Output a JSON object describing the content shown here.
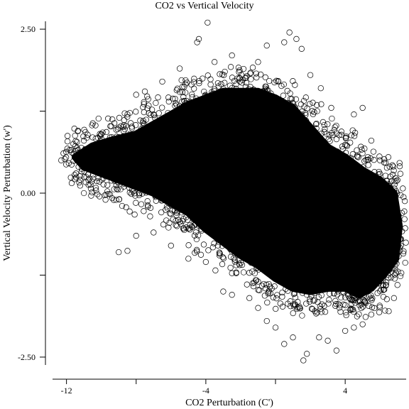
{
  "chart_data": {
    "type": "scatter",
    "title": "CO2 vs Vertical Velocity",
    "xlabel": "CO2 Perturbation (C')",
    "ylabel": "Vertical Velocity Perturbation (w')",
    "xlim": [
      -12.8,
      7.5
    ],
    "ylim": [
      -2.62,
      2.62
    ],
    "x_ticks": [
      {
        "value": -12,
        "label": "-12"
      },
      {
        "value": -8,
        "label": ""
      },
      {
        "value": -4,
        "label": "-4"
      },
      {
        "value": 0,
        "label": ""
      },
      {
        "value": 4,
        "label": "4"
      }
    ],
    "y_ticks": [
      {
        "value": -2.5,
        "label": "-2.50"
      },
      {
        "value": -1.25,
        "label": ""
      },
      {
        "value": 0,
        "label": "0.00"
      },
      {
        "value": 1.25,
        "label": ""
      },
      {
        "value": 2.5,
        "label": "2.50"
      }
    ],
    "marker": "open-circle",
    "series": [
      {
        "points": [
          [
            -12.3,
            0.5
          ],
          [
            -12.1,
            0.52
          ],
          [
            -11.2,
            0.5
          ],
          [
            -11.0,
            0.0
          ],
          [
            -10.6,
            0.07
          ],
          [
            -11.6,
            0.75
          ],
          [
            -11.4,
            0.78
          ],
          [
            -11.0,
            0.8
          ],
          [
            -10.5,
            0.85
          ],
          [
            -10.0,
            0.9
          ],
          [
            -9.5,
            0.85
          ],
          [
            -9.0,
            1.0
          ],
          [
            -8.5,
            1.2
          ],
          [
            -8.0,
            1.5
          ],
          [
            -7.5,
            1.55
          ],
          [
            -6.5,
            1.7
          ],
          [
            -5.5,
            1.9
          ],
          [
            -4.5,
            2.3
          ],
          [
            -4.4,
            2.35
          ],
          [
            -3.9,
            2.6
          ],
          [
            -3.5,
            2.0
          ],
          [
            -2.5,
            2.1
          ],
          [
            -1.0,
            2.0
          ],
          [
            -0.5,
            2.25
          ],
          [
            0.5,
            2.3
          ],
          [
            0.8,
            2.45
          ],
          [
            1.2,
            2.35
          ],
          [
            1.5,
            2.2
          ],
          [
            2.0,
            1.8
          ],
          [
            2.6,
            1.6
          ],
          [
            3.2,
            1.3
          ],
          [
            4.5,
            1.2
          ],
          [
            5.0,
            1.3
          ],
          [
            5.5,
            0.8
          ],
          [
            6.0,
            0.5
          ],
          [
            -9.0,
            -0.9
          ],
          [
            -8.5,
            -0.88
          ],
          [
            -8.0,
            -0.65
          ],
          [
            -7.0,
            -0.6
          ],
          [
            -6.0,
            -0.8
          ],
          [
            -5.0,
            -1.0
          ],
          [
            -4.0,
            -1.05
          ],
          [
            -3.0,
            -1.5
          ],
          [
            -2.5,
            -1.55
          ],
          [
            -1.5,
            -1.6
          ],
          [
            -1.0,
            -1.75
          ],
          [
            -0.5,
            -1.95
          ],
          [
            0.0,
            -2.05
          ],
          [
            0.5,
            -2.3
          ],
          [
            1.0,
            -2.2
          ],
          [
            1.6,
            -2.55
          ],
          [
            1.8,
            -2.45
          ],
          [
            2.5,
            -2.2
          ],
          [
            3.0,
            -2.25
          ],
          [
            3.5,
            -2.4
          ],
          [
            4.0,
            -2.1
          ],
          [
            4.5,
            -2.05
          ],
          [
            5.0,
            -2.0
          ],
          [
            5.5,
            -1.85
          ],
          [
            6.5,
            -1.8
          ],
          [
            6.8,
            -1.6
          ],
          [
            7.0,
            -1.4
          ],
          [
            7.2,
            -0.8
          ],
          [
            7.1,
            -0.5
          ],
          [
            7.0,
            0.2
          ]
        ]
      }
    ]
  }
}
